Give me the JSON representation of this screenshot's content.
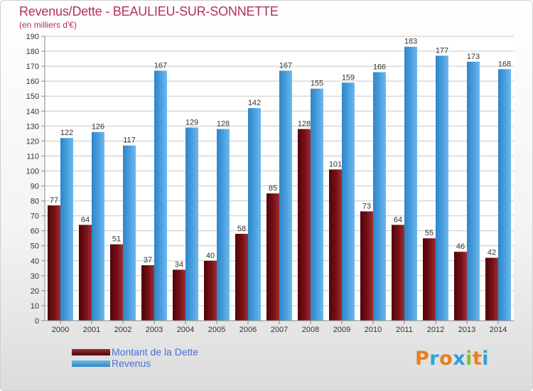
{
  "chart_data": {
    "type": "bar",
    "title": "Revenus/Dette - BEAULIEU-SUR-SONNETTE",
    "subtitle": "(en milliers d'€)",
    "xlabel": "",
    "ylabel": "",
    "ylim": [
      0,
      190
    ],
    "yticks": [
      0,
      10,
      20,
      30,
      40,
      50,
      60,
      70,
      80,
      90,
      100,
      110,
      120,
      130,
      140,
      150,
      160,
      170,
      180,
      190
    ],
    "grid": true,
    "categories": [
      "2000",
      "2001",
      "2002",
      "2003",
      "2004",
      "2005",
      "2006",
      "2007",
      "2008",
      "2009",
      "2010",
      "2011",
      "2012",
      "2013",
      "2014"
    ],
    "series": [
      {
        "name": "Montant de la Dette",
        "color": "#7a1016",
        "values": [
          77,
          64,
          51,
          37,
          34,
          40,
          58,
          85,
          128,
          101,
          73,
          64,
          55,
          46,
          42
        ]
      },
      {
        "name": "Revenus",
        "color": "#4aa0e0",
        "values": [
          122,
          126,
          117,
          167,
          129,
          128,
          142,
          167,
          155,
          159,
          166,
          183,
          177,
          173,
          168
        ]
      }
    ],
    "legend": "bottom-left"
  },
  "colors": {
    "title": "#b03060",
    "legend_text": "#4a6fd8",
    "grid": "#c8c8c8"
  },
  "logo": {
    "letters": [
      "P",
      "r",
      "o",
      "x",
      "i",
      "t",
      "i"
    ],
    "colors": [
      "#e8801a",
      "#2fa0dc",
      "#e8801a",
      "#2fa0dc",
      "#7cc23c",
      "#e8801a",
      "#2fa0dc"
    ]
  }
}
